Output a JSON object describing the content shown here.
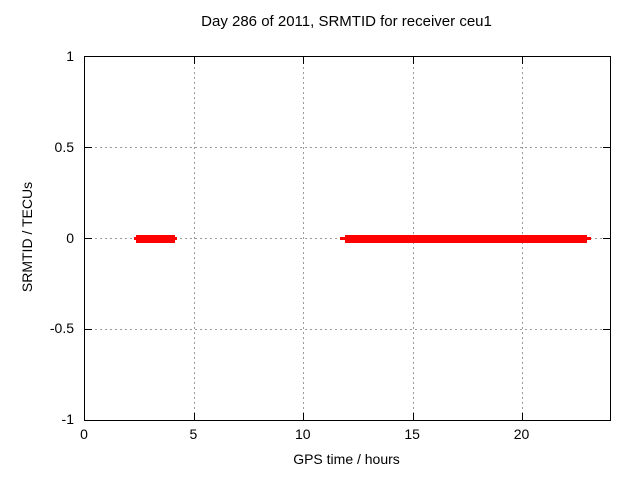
{
  "chart": {
    "title": "Day 286 of 2011, SRMTID for receiver ceu1",
    "xlabel": "GPS time / hours",
    "ylabel": "SRMTID / TECUs"
  },
  "chart_data": {
    "type": "line",
    "title": "Day 286 of 2011, SRMTID for receiver ceu1",
    "xlabel": "GPS time / hours",
    "ylabel": "SRMTID / TECUs",
    "xlim": [
      0,
      24
    ],
    "ylim": [
      -1,
      1
    ],
    "xticks": [
      0,
      5,
      10,
      15,
      20
    ],
    "yticks": [
      1,
      0.5,
      0,
      -0.5,
      -1
    ],
    "grid": true,
    "grid_style": "dotted",
    "legend": false,
    "series": [
      {
        "name": "SRMTID",
        "color": "#ff0000",
        "segments": [
          {
            "y": 0,
            "x_start": 2.33,
            "x_end": 4.13,
            "line_x_start": 2.23,
            "line_x_end": 4.21
          },
          {
            "y": 0,
            "x_start": 11.89,
            "x_end": 22.94,
            "line_x_start": 11.67,
            "line_x_end": 23.13
          }
        ]
      }
    ],
    "colors": {
      "series": "#ff0000",
      "grid": "#9a9a9a",
      "axis": "#000000",
      "background": "#ffffff"
    }
  }
}
